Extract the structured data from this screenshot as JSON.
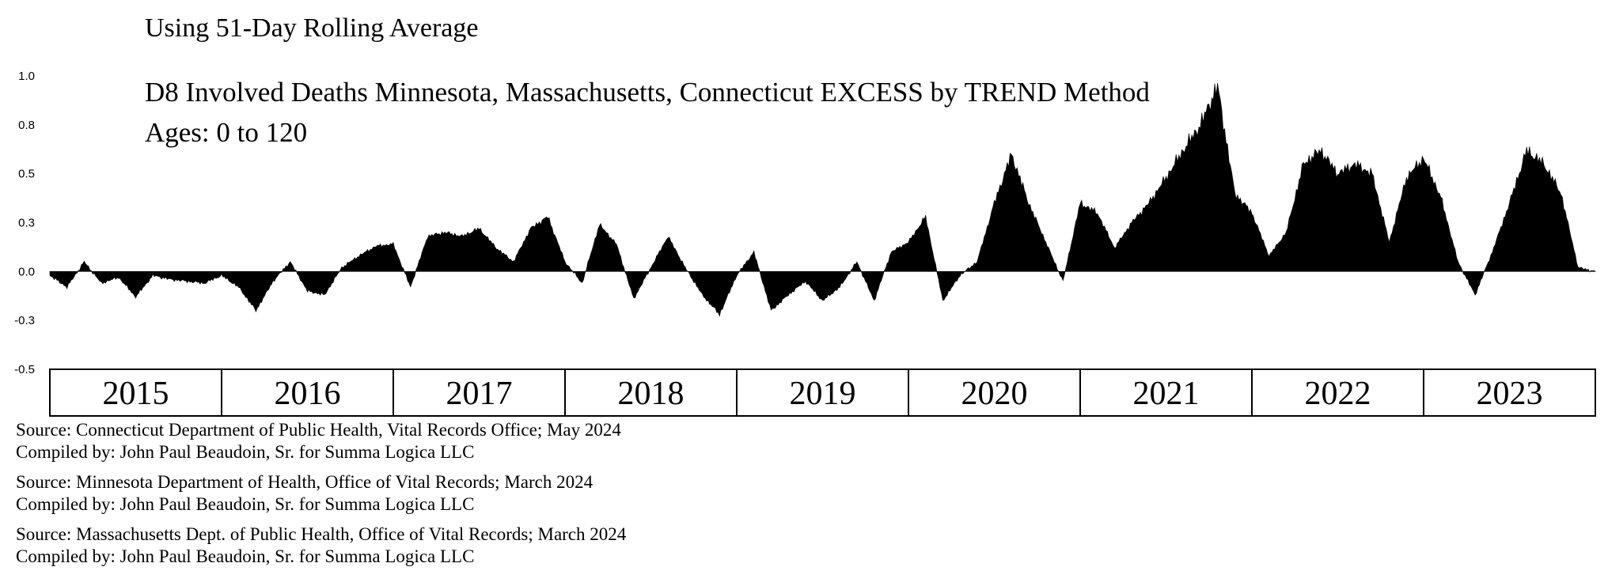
{
  "chart_data": {
    "type": "area",
    "subtitle": "Using 51-Day Rolling Average",
    "title": "D8 Involved Deaths Minnesota, Massachusetts, Connecticut EXCESS by TREND Method",
    "ages": "Ages:  0 to 120",
    "ylim": [
      -0.5,
      1.0
    ],
    "yticks": [
      {
        "value": 1.0,
        "label": "1.0"
      },
      {
        "value": 0.75,
        "label": "0.8"
      },
      {
        "value": 0.5,
        "label": "0.5"
      },
      {
        "value": 0.25,
        "label": "0.3"
      },
      {
        "value": 0.0,
        "label": "0.0"
      },
      {
        "value": -0.25,
        "label": "-0.3"
      },
      {
        "value": -0.5,
        "label": "-0.5"
      }
    ],
    "years": [
      "2015",
      "2016",
      "2017",
      "2018",
      "2019",
      "2020",
      "2021",
      "2022",
      "2023"
    ],
    "color": "#000000",
    "series": [
      {
        "name": "Excess (51-day rolling average)",
        "x": [
          2015.0,
          2015.1,
          2015.2,
          2015.3,
          2015.4,
          2015.5,
          2015.6,
          2015.7,
          2015.8,
          2015.9,
          2016.0,
          2016.1,
          2016.2,
          2016.3,
          2016.4,
          2016.5,
          2016.6,
          2016.7,
          2016.8,
          2016.9,
          2017.0,
          2017.1,
          2017.2,
          2017.3,
          2017.4,
          2017.5,
          2017.6,
          2017.7,
          2017.8,
          2017.9,
          2018.0,
          2018.1,
          2018.2,
          2018.3,
          2018.4,
          2018.5,
          2018.6,
          2018.7,
          2018.8,
          2018.9,
          2019.0,
          2019.1,
          2019.2,
          2019.3,
          2019.4,
          2019.5,
          2019.6,
          2019.7,
          2019.8,
          2019.9,
          2020.0,
          2020.1,
          2020.2,
          2020.3,
          2020.4,
          2020.5,
          2020.6,
          2020.7,
          2020.8,
          2020.9,
          2021.0,
          2021.1,
          2021.2,
          2021.3,
          2021.4,
          2021.5,
          2021.6,
          2021.7,
          2021.8,
          2021.9,
          2022.0,
          2022.1,
          2022.2,
          2022.3,
          2022.4,
          2022.5,
          2022.6,
          2022.7,
          2022.8,
          2022.9,
          2023.0,
          2023.1,
          2023.2,
          2023.3,
          2023.4,
          2023.5,
          2023.6,
          2023.7,
          2023.8,
          2023.9,
          2024.0
        ],
        "values": [
          -0.02,
          -0.08,
          0.05,
          -0.06,
          -0.03,
          -0.13,
          -0.02,
          -0.04,
          -0.05,
          -0.06,
          -0.02,
          -0.08,
          -0.2,
          -0.05,
          0.05,
          -0.1,
          -0.12,
          0.02,
          0.08,
          0.13,
          0.14,
          -0.08,
          0.18,
          0.2,
          0.18,
          0.22,
          0.12,
          0.05,
          0.22,
          0.28,
          0.05,
          -0.06,
          0.24,
          0.14,
          -0.14,
          0.02,
          0.18,
          0.02,
          -0.12,
          -0.22,
          -0.02,
          0.1,
          -0.2,
          -0.12,
          -0.05,
          -0.15,
          -0.08,
          0.05,
          -0.15,
          0.1,
          0.15,
          0.28,
          -0.15,
          -0.02,
          0.05,
          0.35,
          0.6,
          0.35,
          0.15,
          -0.05,
          0.35,
          0.3,
          0.12,
          0.25,
          0.35,
          0.48,
          0.62,
          0.75,
          0.95,
          0.4,
          0.3,
          0.08,
          0.2,
          0.55,
          0.62,
          0.5,
          0.55,
          0.5,
          0.15,
          0.48,
          0.58,
          0.38,
          0.05,
          -0.12,
          0.1,
          0.35,
          0.62,
          0.55,
          0.4,
          0.02,
          0.0
        ]
      }
    ]
  },
  "sources": [
    {
      "source": "Source:  Connecticut Department of Public Health, Vital Records Office; May 2024",
      "compiled": "Compiled by:  John Paul Beaudoin, Sr. for Summa Logica LLC"
    },
    {
      "source": "Source:  Minnesota Department of Health, Office of Vital Records; March 2024",
      "compiled": "Compiled by:  John Paul Beaudoin, Sr. for Summa Logica LLC"
    },
    {
      "source": "Source:  Massachusetts Dept. of Public Health, Office of Vital Records; March 2024",
      "compiled": "Compiled by:  John Paul Beaudoin, Sr. for Summa Logica LLC"
    }
  ]
}
